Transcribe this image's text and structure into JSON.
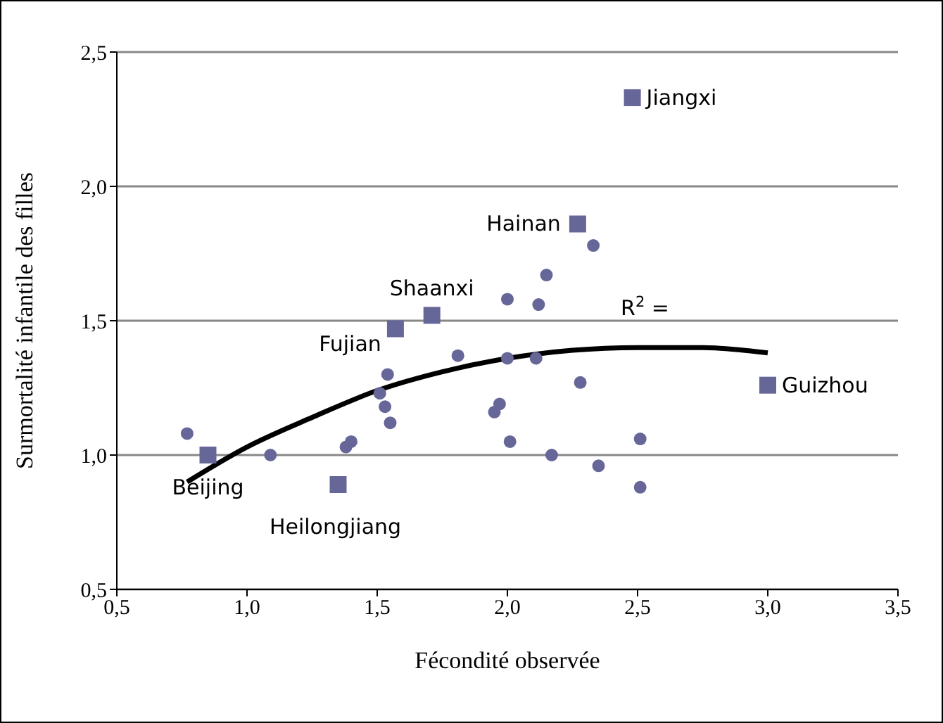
{
  "chart_data": {
    "type": "scatter",
    "xlabel": "Fécondité observée",
    "ylabel": "Surmortalité infantile des filles",
    "xlim": [
      0.5,
      3.5
    ],
    "ylim": [
      0.5,
      2.5
    ],
    "xticks": [
      {
        "value": 0.5,
        "label": "0,5"
      },
      {
        "value": 1,
        "label": "1,0"
      },
      {
        "value": 1.5,
        "label": "1,5"
      },
      {
        "value": 2,
        "label": "2,0"
      },
      {
        "value": 2.5,
        "label": "2,5"
      },
      {
        "value": 3,
        "label": "3,0"
      },
      {
        "value": 3.5,
        "label": "3,5"
      }
    ],
    "yticks": [
      {
        "value": 0.5,
        "label": "0,5"
      },
      {
        "value": 1,
        "label": "1,0"
      },
      {
        "value": 1.5,
        "label": "1,5"
      },
      {
        "value": 2,
        "label": "2,0"
      },
      {
        "value": 2.5,
        "label": "2,5"
      }
    ],
    "grid": "y",
    "legend": false,
    "series": [
      {
        "marker": "circle",
        "color": "#666699",
        "x": [
          0.77,
          1.09,
          1.38,
          1.4,
          1.51,
          1.54,
          1.53,
          1.55,
          1.81,
          2.0,
          2.0,
          2.01,
          1.95,
          1.97,
          2.12,
          2.15,
          2.33,
          2.11,
          2.28,
          2.17,
          2.35,
          2.51,
          2.51
        ],
        "values": [
          1.08,
          1.0,
          1.03,
          1.05,
          1.23,
          1.3,
          1.18,
          1.12,
          1.37,
          1.58,
          1.36,
          1.05,
          1.16,
          1.19,
          1.56,
          1.67,
          1.78,
          1.36,
          1.27,
          1.0,
          0.96,
          1.06,
          0.88
        ]
      },
      {
        "marker": "square",
        "color": "#666699",
        "x": [
          2.48,
          2.27,
          1.71,
          1.57,
          3.0,
          0.85,
          1.35
        ],
        "values": [
          2.33,
          1.86,
          1.52,
          1.47,
          1.26,
          1.0,
          0.89
        ]
      },
      {
        "type": "line",
        "marker": "none",
        "color": "#000000",
        "x": [
          0.77,
          1.0,
          1.25,
          1.5,
          1.75,
          2.0,
          2.25,
          2.5,
          2.75,
          3.0
        ],
        "values": [
          0.9,
          1.03,
          1.14,
          1.24,
          1.31,
          1.36,
          1.39,
          1.4,
          1.4,
          1.38
        ]
      }
    ],
    "annotations": [
      {
        "text": "Jiangxi",
        "x": 2.48,
        "y": 2.33
      },
      {
        "text": "Hainan",
        "x": 2.27,
        "y": 1.86
      },
      {
        "text": "Shaanxi",
        "x": 1.71,
        "y": 1.52
      },
      {
        "text": "Fujian",
        "x": 1.57,
        "y": 1.47
      },
      {
        "text": "Guizhou",
        "x": 3.0,
        "y": 1.26
      },
      {
        "text": "Beijing",
        "x": 0.85,
        "y": 1.0
      },
      {
        "text": "Heilongjiang",
        "x": 1.35,
        "y": 0.89
      },
      "R$^{2}$ ="
    ]
  }
}
